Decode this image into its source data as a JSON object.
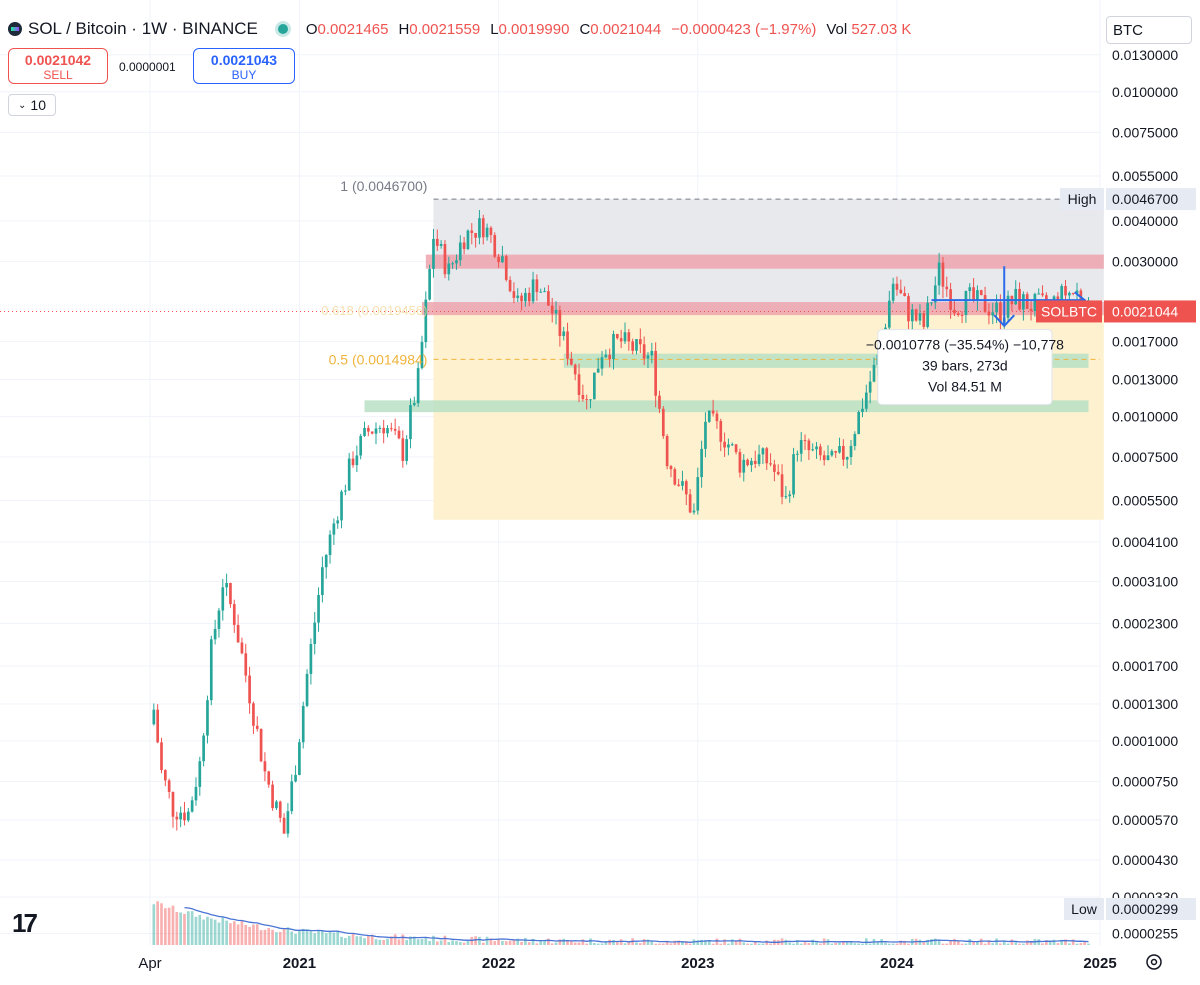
{
  "header": {
    "title": "SOL / Bitcoin · 1W · BINANCE",
    "open_label": "O",
    "open": "0.0021465",
    "high_label": "H",
    "high": "0.0021559",
    "low_label": "L",
    "low": "0.0019990",
    "close_label": "C",
    "close": "0.0021044",
    "change": "−0.0000423 (−1.97%)",
    "vol_label": "Vol",
    "vol": "527.03 K"
  },
  "trade": {
    "sell_price": "0.0021042",
    "sell_label": "SELL",
    "spread": "0.0000001",
    "buy_price": "0.0021043",
    "buy_label": "BUY"
  },
  "interval": "10",
  "currency": "BTC",
  "colors": {
    "up": "#26a69a",
    "down": "#ef5350",
    "fib_zone": "#fdf1cf",
    "top_zone": "#e6e7eb",
    "red_band": "#eea3ad",
    "green_band": "#b8e0c4",
    "volume_ma": "#4a74d6",
    "arrow": "#2b6ae8"
  },
  "chart_data": {
    "type": "candlestick",
    "y_scale": "log",
    "y_tick_labels": [
      "0.0130000",
      "0.0100000",
      "0.0075000",
      "0.0055000",
      "0.0040000",
      "0.0030000",
      "0.0017000",
      "0.0013000",
      "0.0010000",
      "0.0007500",
      "0.0005500",
      "0.0004100",
      "0.0003100",
      "0.0002300",
      "0.0001700",
      "0.0001300",
      "0.0001000",
      "0.0000750",
      "0.0000570",
      "0.0000430",
      "0.0000330",
      "0.0000255"
    ],
    "x_tick_labels": [
      "Apr",
      "2021",
      "2022",
      "2023",
      "2024",
      "2025"
    ],
    "x_range": [
      "2020-04-06",
      "2025-01-06"
    ],
    "series": [
      {
        "name": "SOLBTC",
        "close_points": [
          [
            "2020-04-13",
            0.000125
          ],
          [
            "2020-04-27",
            8e-05
          ],
          [
            "2020-05-18",
            6.2e-05
          ],
          [
            "2020-06-15",
            6e-05
          ],
          [
            "2020-07-06",
            8.5e-05
          ],
          [
            "2020-07-27",
            0.00019
          ],
          [
            "2020-08-17",
            0.00031
          ],
          [
            "2020-09-07",
            0.00024
          ],
          [
            "2020-10-05",
            0.00014
          ],
          [
            "2020-11-02",
            8e-05
          ],
          [
            "2020-12-07",
            5.2e-05
          ],
          [
            "2020-12-28",
            8.5e-05
          ],
          [
            "2021-01-18",
            0.00016
          ],
          [
            "2021-02-15",
            0.00034
          ],
          [
            "2021-03-15",
            0.00052
          ],
          [
            "2021-04-12",
            0.00075
          ],
          [
            "2021-05-10",
            0.0009
          ],
          [
            "2021-06-07",
            0.00095
          ],
          [
            "2021-07-12",
            0.00078
          ],
          [
            "2021-08-09",
            0.0013
          ],
          [
            "2021-09-06",
            0.0036
          ],
          [
            "2021-10-04",
            0.0028
          ],
          [
            "2021-11-01",
            0.0036
          ],
          [
            "2021-12-06",
            0.0039
          ],
          [
            "2022-01-10",
            0.0031
          ],
          [
            "2022-02-07",
            0.0022
          ],
          [
            "2022-03-14",
            0.0026
          ],
          [
            "2022-04-11",
            0.0021
          ],
          [
            "2022-05-09",
            0.0016
          ],
          [
            "2022-06-13",
            0.0011
          ],
          [
            "2022-07-11",
            0.0016
          ],
          [
            "2022-08-15",
            0.0017
          ],
          [
            "2022-09-12",
            0.0016
          ],
          [
            "2022-10-10",
            0.0015
          ],
          [
            "2022-11-07",
            0.00075
          ],
          [
            "2022-12-26",
            0.0005
          ],
          [
            "2023-01-16",
            0.00098
          ],
          [
            "2023-02-13",
            0.0009
          ],
          [
            "2023-03-20",
            0.00072
          ],
          [
            "2023-04-17",
            0.00075
          ],
          [
            "2023-05-15",
            0.00072
          ],
          [
            "2023-06-12",
            0.00055
          ],
          [
            "2023-07-03",
            0.00082
          ],
          [
            "2023-08-07",
            0.00075
          ],
          [
            "2023-09-04",
            0.00072
          ],
          [
            "2023-10-02",
            0.00078
          ],
          [
            "2023-10-30",
            0.0011
          ],
          [
            "2023-11-27",
            0.0015
          ],
          [
            "2023-12-25",
            0.0026
          ],
          [
            "2024-01-22",
            0.0021
          ],
          [
            "2024-02-19",
            0.0019
          ],
          [
            "2024-03-18",
            0.0028
          ],
          [
            "2024-04-15",
            0.0022
          ],
          [
            "2024-05-13",
            0.0023
          ],
          [
            "2024-06-10",
            0.0022
          ],
          [
            "2024-07-08",
            0.0021
          ],
          [
            "2024-08-05",
            0.0023
          ],
          [
            "2024-09-02",
            0.0022
          ],
          [
            "2024-10-07",
            0.0022
          ],
          [
            "2024-11-04",
            0.0024
          ],
          [
            "2024-11-25",
            0.0024
          ],
          [
            "2024-12-16",
            0.0021
          ]
        ]
      }
    ],
    "annotations": {
      "last_price_label": "SOLBTC",
      "last_price": 0.0021044,
      "last_price_text": "0.0021044",
      "high_label": "High",
      "high_value": 0.00467,
      "high_text": "0.0046700",
      "low_label": "Low",
      "low_value": 2.99e-05,
      "low_text": "0.0000299",
      "fib_1_label": "1 (0.0046700)",
      "fib_05_label": "0.5 (0.0014984)",
      "fib_upper_label": "0.618 (0.0019456)",
      "fib_range": {
        "x_start": "2021-09-06",
        "x_end": "2025-01-13",
        "top": 0.00467,
        "bottom": 0.00048,
        "half": 0.0014984
      },
      "measure": {
        "change_text": "−0.0010778 (−35.54%) −10,778",
        "bars_text": "39 bars, 273d",
        "vol_text": "Vol 84.51 M"
      },
      "red_zones": [
        {
          "from": "2021-08-23",
          "to": "2025-01-13",
          "low": 0.00285,
          "high": 0.00315
        },
        {
          "from": "2021-08-16",
          "to": "2025-01-13",
          "low": 0.00205,
          "high": 0.00225
        }
      ],
      "green_zones": [
        {
          "from": "2022-05-02",
          "to": "2024-12-16",
          "low": 0.00141,
          "high": 0.00156
        },
        {
          "from": "2021-05-03",
          "to": "2024-12-16",
          "low": 0.00103,
          "high": 0.00112
        }
      ]
    }
  }
}
